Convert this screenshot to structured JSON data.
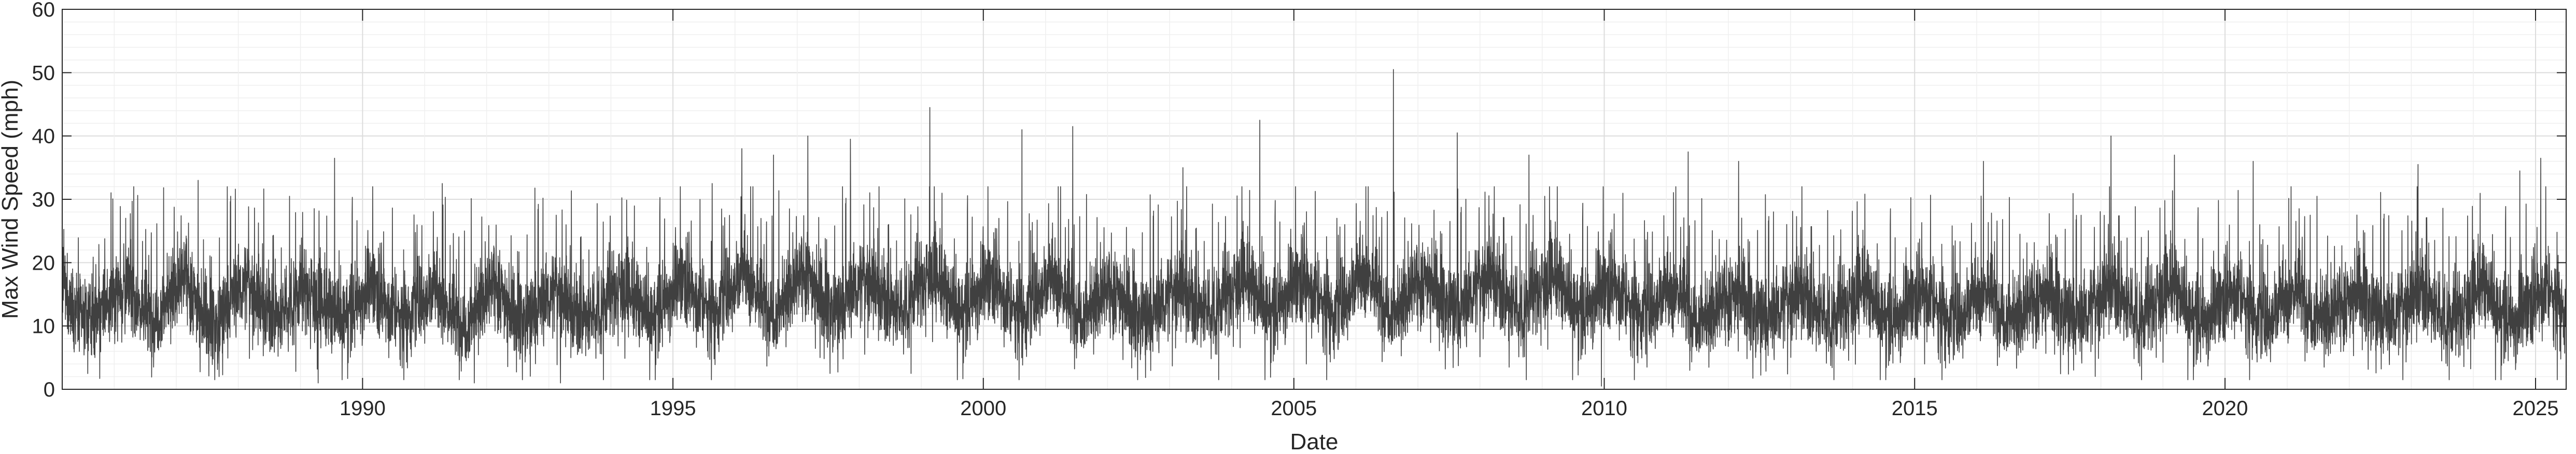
{
  "chart_data": {
    "type": "line",
    "title": "",
    "xlabel": "Date",
    "ylabel": "Max Wind Speed (mph)",
    "xlim": [
      "1985-03-01",
      "2025-06-30"
    ],
    "ylim": [
      0,
      60
    ],
    "grid": true,
    "legend": "none",
    "x_tick_labels": [
      "1990",
      "1995",
      "2000",
      "2005",
      "2010",
      "2015",
      "2020",
      "2025"
    ],
    "y_tick_labels": [
      "0",
      "10",
      "20",
      "30",
      "40",
      "50",
      "60"
    ],
    "series": [
      {
        "color": "#404040",
        "x": [
          "1985-03-01",
          "1985-06-01",
          "1985-09-01",
          "1985-12-01",
          "1986-03-01",
          "1986-06-01",
          "1986-09-01",
          "1986-12-01",
          "1987-03-01",
          "1987-06-01",
          "1987-09-01",
          "1987-12-01",
          "1988-03-01",
          "1988-06-01",
          "1988-09-01",
          "1988-12-01",
          "1989-03-01",
          "1989-06-01",
          "1989-09-01",
          "1989-12-01",
          "1990-03-01",
          "1990-06-01",
          "1990-09-01",
          "1990-12-01",
          "1991-03-01",
          "1991-06-01",
          "1991-09-01",
          "1991-12-01",
          "1992-03-01",
          "1992-06-01",
          "1992-09-01",
          "1992-12-01",
          "1993-03-01",
          "1993-06-01",
          "1993-09-01",
          "1993-12-01",
          "1994-03-01",
          "1994-06-01",
          "1994-09-01",
          "1994-12-01",
          "1995-03-01",
          "1995-06-01",
          "1995-09-01",
          "1995-12-01",
          "1996-03-01",
          "1996-06-01",
          "1996-09-01",
          "1996-12-01",
          "1997-03-01",
          "1997-06-01",
          "1997-09-01",
          "1997-12-01",
          "1998-03-01",
          "1998-06-01",
          "1998-09-01",
          "1998-12-01",
          "1999-03-01",
          "1999-06-01",
          "1999-09-01",
          "1999-12-01",
          "2000-03-01",
          "2000-06-01",
          "2000-09-01",
          "2000-12-01",
          "2001-03-01",
          "2001-06-01",
          "2001-09-01",
          "2001-12-01",
          "2002-03-01",
          "2002-06-01",
          "2002-09-01",
          "2002-12-01",
          "2003-03-01",
          "2003-06-01",
          "2003-09-01",
          "2003-12-01",
          "2004-03-01",
          "2004-06-01",
          "2004-09-01",
          "2004-12-01",
          "2005-03-01",
          "2005-06-01",
          "2005-09-01",
          "2005-12-01",
          "2006-03-01",
          "2006-06-01",
          "2006-09-01",
          "2006-12-01",
          "2007-03-01",
          "2007-06-01",
          "2007-09-01",
          "2007-12-01",
          "2008-03-01",
          "2008-06-01",
          "2008-09-01",
          "2008-12-01",
          "2009-03-01",
          "2009-06-01",
          "2009-09-01",
          "2009-12-01",
          "2010-03-01",
          "2010-06-01",
          "2010-09-01",
          "2010-12-01",
          "2011-03-01",
          "2011-06-01",
          "2011-09-01",
          "2011-12-01",
          "2012-03-01",
          "2012-06-01",
          "2012-09-01",
          "2012-12-01",
          "2013-03-01",
          "2013-06-01",
          "2013-09-01",
          "2013-12-01",
          "2014-03-01",
          "2014-06-01",
          "2014-09-01",
          "2014-12-01",
          "2015-03-01",
          "2015-06-01",
          "2015-09-01",
          "2015-12-01",
          "2016-03-01",
          "2016-06-01",
          "2016-09-01",
          "2016-12-01",
          "2017-03-01",
          "2017-06-01",
          "2017-09-01",
          "2017-12-01",
          "2018-03-01",
          "2018-06-01",
          "2018-09-01",
          "2018-12-01",
          "2019-03-01",
          "2019-06-01",
          "2019-09-01",
          "2019-12-01",
          "2020-03-01",
          "2020-06-01",
          "2020-09-01",
          "2020-12-01",
          "2021-03-01",
          "2021-06-01",
          "2021-09-01",
          "2021-12-01",
          "2022-03-01",
          "2022-06-01",
          "2022-09-01",
          "2022-12-01",
          "2023-03-01",
          "2023-06-01",
          "2023-09-01",
          "2023-12-01",
          "2024-03-01",
          "2024-06-01",
          "2024-09-01",
          "2024-12-01",
          "2025-03-01",
          "2025-06-01"
        ],
        "values": [
          16,
          12,
          11,
          14,
          17,
          13,
          11,
          15,
          18,
          12,
          10,
          15,
          17,
          13,
          11,
          15,
          16,
          12,
          11,
          14,
          17,
          13,
          11,
          14,
          16,
          12,
          10,
          14,
          17,
          12,
          11,
          14,
          16,
          12,
          11,
          14,
          17,
          13,
          11,
          15,
          18,
          14,
          12,
          16,
          19,
          14,
          12,
          16,
          19,
          14,
          12,
          16,
          18,
          14,
          12,
          16,
          19,
          14,
          12,
          16,
          18,
          13,
          12,
          16,
          18,
          13,
          12,
          15,
          16,
          12,
          11,
          14,
          17,
          13,
          12,
          15,
          18,
          14,
          12,
          16,
          18,
          14,
          12,
          16,
          19,
          14,
          12,
          16,
          18,
          14,
          12,
          16,
          19,
          14,
          12,
          16,
          18,
          14,
          12,
          16,
          17,
          13,
          12,
          15,
          16,
          12,
          11,
          14,
          16,
          12,
          11,
          14,
          16,
          12,
          11,
          14,
          16,
          12,
          11,
          14,
          16,
          12,
          11,
          14,
          16,
          12,
          11,
          14,
          16,
          12,
          11,
          14,
          17,
          13,
          11,
          15,
          16,
          12,
          11,
          14,
          16,
          12,
          11,
          14,
          16,
          12,
          11,
          14,
          16,
          12,
          11,
          14,
          16,
          12,
          11,
          14,
          16,
          12,
          11,
          14,
          16,
          13
        ]
      }
    ],
    "peaks": [
      {
        "x": "1987-05-10",
        "y": 33
      },
      {
        "x": "1989-07-20",
        "y": 36.5
      },
      {
        "x": "1991-04-15",
        "y": 32.5
      },
      {
        "x": "1995-08-20",
        "y": 32.5
      },
      {
        "x": "1996-02-10",
        "y": 38
      },
      {
        "x": "1996-08-15",
        "y": 37
      },
      {
        "x": "1997-03-05",
        "y": 40
      },
      {
        "x": "1997-11-10",
        "y": 39.5
      },
      {
        "x": "1999-02-20",
        "y": 44.5
      },
      {
        "x": "2000-08-15",
        "y": 41
      },
      {
        "x": "2001-06-10",
        "y": 41.5
      },
      {
        "x": "2003-03-20",
        "y": 35
      },
      {
        "x": "2004-06-15",
        "y": 42.5
      },
      {
        "x": "2006-08-10",
        "y": 50.5
      },
      {
        "x": "2007-08-20",
        "y": 40.5
      },
      {
        "x": "2008-10-15",
        "y": 37
      },
      {
        "x": "2011-05-10",
        "y": 37.5
      },
      {
        "x": "2012-03-01",
        "y": 36
      },
      {
        "x": "2016-02-10",
        "y": 36
      },
      {
        "x": "2018-03-01",
        "y": 40
      },
      {
        "x": "2019-03-10",
        "y": 37
      },
      {
        "x": "2020-06-15",
        "y": 36
      },
      {
        "x": "2023-02-10",
        "y": 35.5
      },
      {
        "x": "2024-10-01",
        "y": 34.5
      },
      {
        "x": "2025-02-01",
        "y": 36.5
      }
    ],
    "troughs": [
      {
        "x": "1987-09-10",
        "y": 2
      },
      {
        "x": "1989-04-15",
        "y": 1
      },
      {
        "x": "1991-10-20",
        "y": 1
      },
      {
        "x": "1993-03-10",
        "y": 1
      },
      {
        "x": "1997-05-15",
        "y": 5
      },
      {
        "x": "2005-03-15",
        "y": 4
      },
      {
        "x": "2008-06-20",
        "y": 3.5
      },
      {
        "x": "2009-12-15",
        "y": 0.5
      },
      {
        "x": "2010-09-10",
        "y": 3.5
      },
      {
        "x": "2015-03-01",
        "y": 4
      }
    ]
  }
}
